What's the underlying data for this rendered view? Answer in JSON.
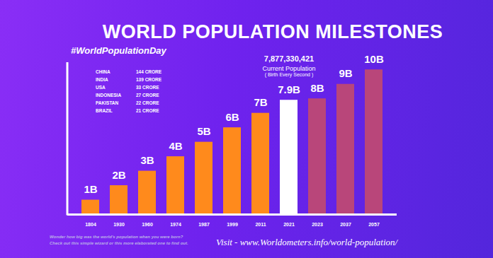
{
  "chart_data": {
    "type": "bar",
    "title": "WORLD POPULATION MILESTONES",
    "subtitle": "#WorldPopulationDay",
    "categories": [
      "1804",
      "1930",
      "1960",
      "1974",
      "1987",
      "1999",
      "2011",
      "2021",
      "2023",
      "2037",
      "2057"
    ],
    "values": [
      1,
      2,
      3,
      4,
      5,
      6,
      7,
      7.9,
      8,
      9,
      10
    ],
    "value_labels": [
      "1B",
      "2B",
      "3B",
      "4B",
      "5B",
      "6B",
      "7B",
      "7.9B",
      "8B",
      "9B",
      "10B"
    ],
    "colors": [
      "#ff8a1c",
      "#ff8a1c",
      "#ff8a1c",
      "#ff8a1c",
      "#ff8a1c",
      "#ff8a1c",
      "#ff8a1c",
      "#ffffff",
      "#b9467a",
      "#b9467a",
      "#b9467a"
    ],
    "ylim": [
      0,
      10.5
    ],
    "yticks": [],
    "tick_labels": "x",
    "data_labels": true,
    "annotations": [
      {
        "category": "2021",
        "lines": [
          "7,877,330,421",
          "Current Population",
          "( Birth Every Second )"
        ]
      }
    ],
    "table": {
      "rows": [
        [
          "CHINA",
          "144 CRORE"
        ],
        [
          "INDIA",
          "139 CRORE"
        ],
        [
          "USA",
          "33 CRORE"
        ],
        [
          "INDONESIA",
          "27 CRORE"
        ],
        [
          "PAKISTAN",
          "22 CRORE"
        ],
        [
          "BRAZIL",
          "21 CRORE"
        ]
      ]
    },
    "caption": [
      "Wonder how big was the world's population when you were born?",
      "Check out this simple wizard or this more elaborated one to find out."
    ],
    "source": "Visit - www.Worldometers.info/world-population/"
  }
}
